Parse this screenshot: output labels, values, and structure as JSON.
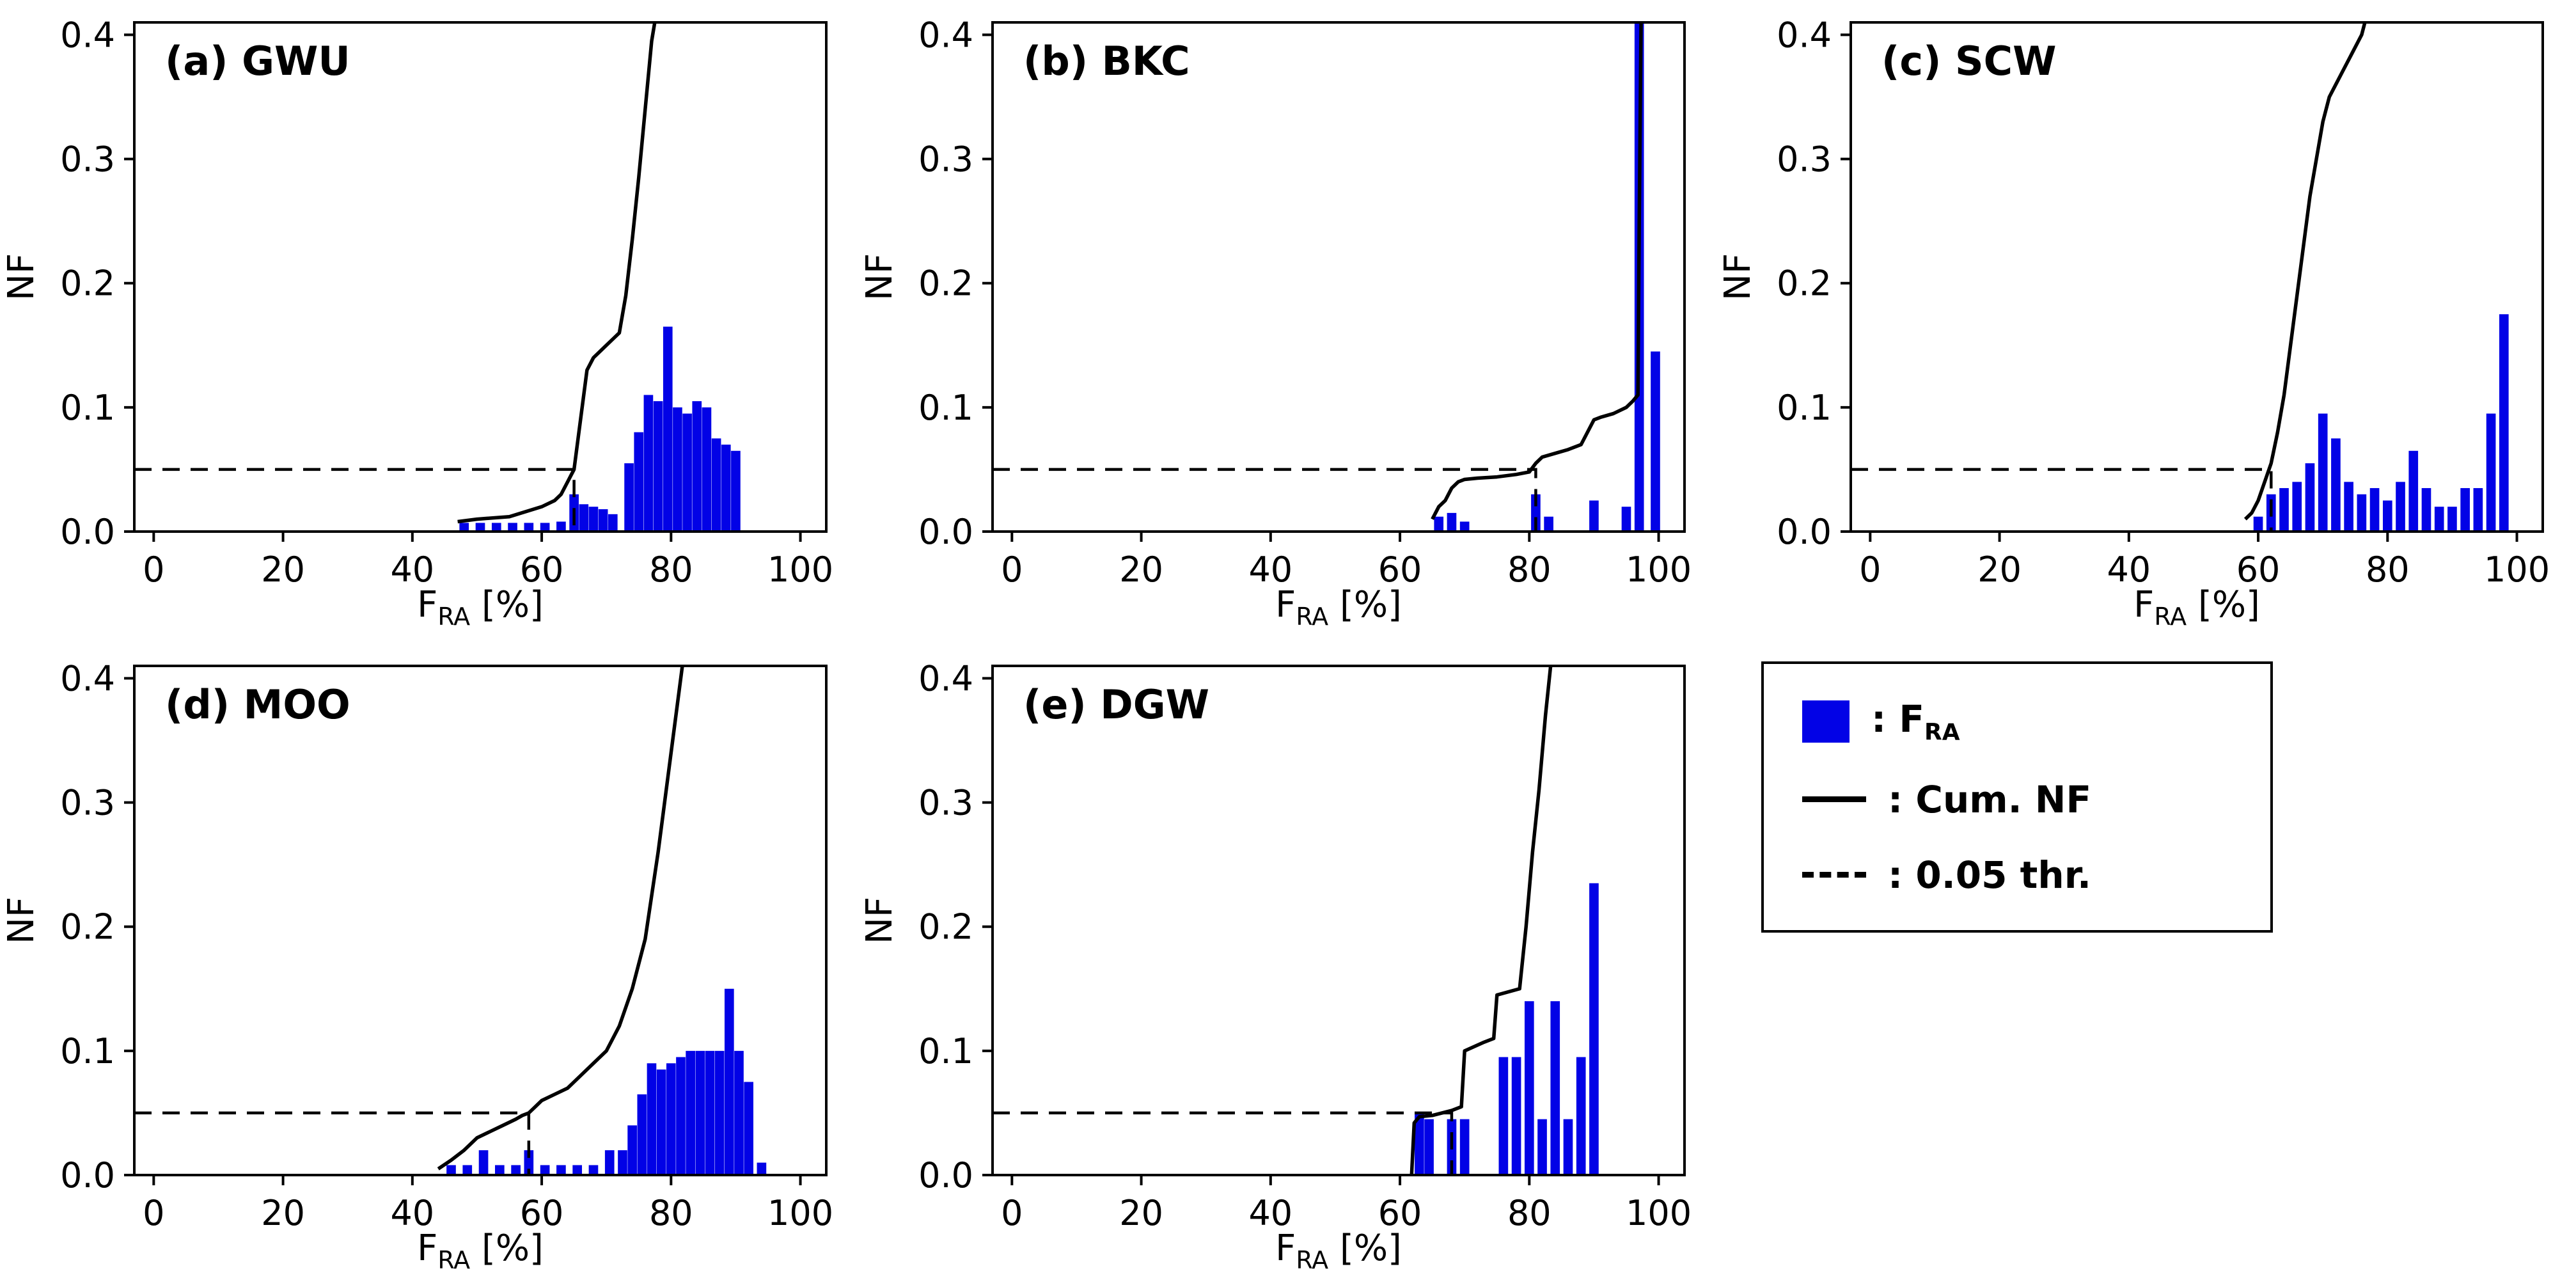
{
  "figure": {
    "background": "#ffffff",
    "bar_color": "#0202E6",
    "line_color": "#000000"
  },
  "axes": {
    "ylabel": "NF",
    "xlabel": {
      "pre": "F",
      "sub": "RA",
      "post": " [%]"
    },
    "xticks": [
      0,
      20,
      40,
      60,
      80,
      100
    ],
    "xtick_labels": [
      "0",
      "20",
      "40",
      "60",
      "80",
      "100"
    ],
    "yticks": [
      0,
      0.1,
      0.2,
      0.3,
      0.4
    ],
    "ytick_labels": [
      "0.0",
      "0.1",
      "0.2",
      "0.3",
      "0.4"
    ],
    "xlim": [
      -3,
      104
    ],
    "ylim": [
      0,
      0.41
    ],
    "grid": false
  },
  "legend": {
    "items": [
      {
        "type": "bar",
        "label_pre": ": F",
        "label_sub": "RA",
        "label_post": ""
      },
      {
        "type": "solid",
        "label_pre": ": Cum. NF",
        "label_sub": "",
        "label_post": ""
      },
      {
        "type": "dashed",
        "label_pre": ": 0.05 thr.",
        "label_sub": "",
        "label_post": ""
      }
    ]
  },
  "chart_data": [
    {
      "id": "a",
      "type": "bar",
      "title": "(a) GWU",
      "threshold": 0.05,
      "vline_x": 65,
      "bars": {
        "x": [
          48,
          50.5,
          53,
          55.5,
          58,
          60.5,
          63,
          65,
          66.5,
          68,
          69.5,
          71,
          73.5,
          75,
          76.5,
          78,
          79.5,
          81,
          82.5,
          84,
          85.5,
          87,
          88.5,
          90
        ],
        "nf": [
          0.007,
          0.007,
          0.007,
          0.007,
          0.007,
          0.007,
          0.008,
          0.03,
          0.022,
          0.02,
          0.018,
          0.014,
          0.055,
          0.08,
          0.11,
          0.105,
          0.165,
          0.1,
          0.095,
          0.105,
          0.1,
          0.075,
          0.07,
          0.065
        ]
      },
      "cum": {
        "x": [
          47,
          50,
          55,
          60,
          62,
          63,
          64,
          65,
          66,
          67,
          68,
          69,
          70,
          71,
          72,
          73,
          74,
          75,
          76,
          77,
          77.8
        ],
        "y": [
          0.008,
          0.01,
          0.012,
          0.02,
          0.025,
          0.03,
          0.04,
          0.05,
          0.09,
          0.13,
          0.14,
          0.145,
          0.15,
          0.155,
          0.16,
          0.19,
          0.235,
          0.285,
          0.34,
          0.395,
          0.42
        ]
      }
    },
    {
      "id": "b",
      "type": "bar",
      "title": "(b) BKC",
      "threshold": 0.05,
      "vline_x": 81,
      "bars": {
        "x": [
          66,
          68,
          70,
          81,
          83,
          90,
          95,
          97,
          99.5
        ],
        "nf": [
          0.012,
          0.015,
          0.008,
          0.03,
          0.012,
          0.025,
          0.02,
          0.42,
          0.145
        ]
      },
      "cum": {
        "x": [
          65,
          66,
          67,
          68,
          69,
          70,
          72,
          75,
          78,
          80,
          81,
          82,
          84,
          86,
          88,
          90,
          91,
          93,
          95,
          96,
          96.8,
          97,
          97.3
        ],
        "y": [
          0.01,
          0.02,
          0.025,
          0.035,
          0.04,
          0.042,
          0.043,
          0.044,
          0.046,
          0.048,
          0.055,
          0.06,
          0.063,
          0.066,
          0.07,
          0.09,
          0.092,
          0.095,
          0.1,
          0.105,
          0.11,
          0.25,
          0.42
        ]
      }
    },
    {
      "id": "c",
      "type": "bar",
      "title": "(c) SCW",
      "threshold": 0.05,
      "vline_x": 62,
      "bars": {
        "x": [
          60,
          62,
          64,
          66,
          68,
          70,
          72,
          74,
          76,
          78,
          80,
          82,
          84,
          86,
          88,
          90,
          92,
          94,
          96,
          98
        ],
        "nf": [
          0.012,
          0.03,
          0.035,
          0.04,
          0.055,
          0.095,
          0.075,
          0.04,
          0.03,
          0.035,
          0.025,
          0.04,
          0.065,
          0.035,
          0.02,
          0.02,
          0.035,
          0.035,
          0.095,
          0.175
        ]
      },
      "cum": {
        "x": [
          58,
          59,
          60,
          61,
          62,
          63,
          64,
          65,
          66,
          67,
          68,
          69,
          70,
          71,
          72,
          73,
          74,
          75,
          76,
          77
        ],
        "y": [
          0.01,
          0.015,
          0.025,
          0.04,
          0.055,
          0.08,
          0.11,
          0.15,
          0.19,
          0.23,
          0.27,
          0.3,
          0.33,
          0.35,
          0.36,
          0.37,
          0.38,
          0.39,
          0.4,
          0.42
        ]
      }
    },
    {
      "id": "d",
      "type": "bar",
      "title": "(d) MOO",
      "threshold": 0.05,
      "vline_x": 58,
      "bars": {
        "x": [
          46,
          48.5,
          51,
          53.5,
          56,
          58,
          60.5,
          63,
          65.5,
          68,
          70.5,
          72.5,
          74,
          75.5,
          77,
          78.5,
          80,
          81.5,
          83,
          84.5,
          86,
          87.5,
          89,
          90.5,
          92,
          94
        ],
        "nf": [
          0.008,
          0.008,
          0.02,
          0.008,
          0.008,
          0.02,
          0.008,
          0.008,
          0.008,
          0.008,
          0.02,
          0.02,
          0.04,
          0.065,
          0.09,
          0.085,
          0.09,
          0.095,
          0.1,
          0.1,
          0.1,
          0.1,
          0.15,
          0.1,
          0.075,
          0.01
        ]
      },
      "cum": {
        "x": [
          44,
          46,
          48,
          50,
          52,
          54,
          56,
          57,
          58,
          59,
          60,
          62,
          64,
          66,
          68,
          70,
          72,
          74,
          76,
          78,
          79,
          80,
          81,
          82
        ],
        "y": [
          0.005,
          0.012,
          0.02,
          0.03,
          0.035,
          0.04,
          0.045,
          0.048,
          0.05,
          0.055,
          0.06,
          0.065,
          0.07,
          0.08,
          0.09,
          0.1,
          0.12,
          0.15,
          0.19,
          0.26,
          0.3,
          0.34,
          0.38,
          0.42
        ]
      }
    },
    {
      "id": "e",
      "type": "bar",
      "title": "(e) DGW",
      "threshold": 0.05,
      "vline_x": 68,
      "bars": {
        "x": [
          63,
          64.5,
          68,
          70,
          76,
          78,
          80,
          82,
          84,
          86,
          88,
          90
        ],
        "nf": [
          0.05,
          0.045,
          0.045,
          0.045,
          0.095,
          0.095,
          0.14,
          0.045,
          0.14,
          0.045,
          0.095,
          0.235
        ]
      },
      "cum": {
        "x": [
          61.8,
          62.2,
          63,
          65,
          68,
          69.5,
          70,
          73,
          74.5,
          75,
          78.5,
          79.5,
          80.5,
          81.5,
          82.5,
          83.5
        ],
        "y": [
          0.0,
          0.042,
          0.047,
          0.048,
          0.052,
          0.055,
          0.1,
          0.107,
          0.11,
          0.145,
          0.15,
          0.2,
          0.26,
          0.31,
          0.37,
          0.42
        ]
      }
    }
  ]
}
